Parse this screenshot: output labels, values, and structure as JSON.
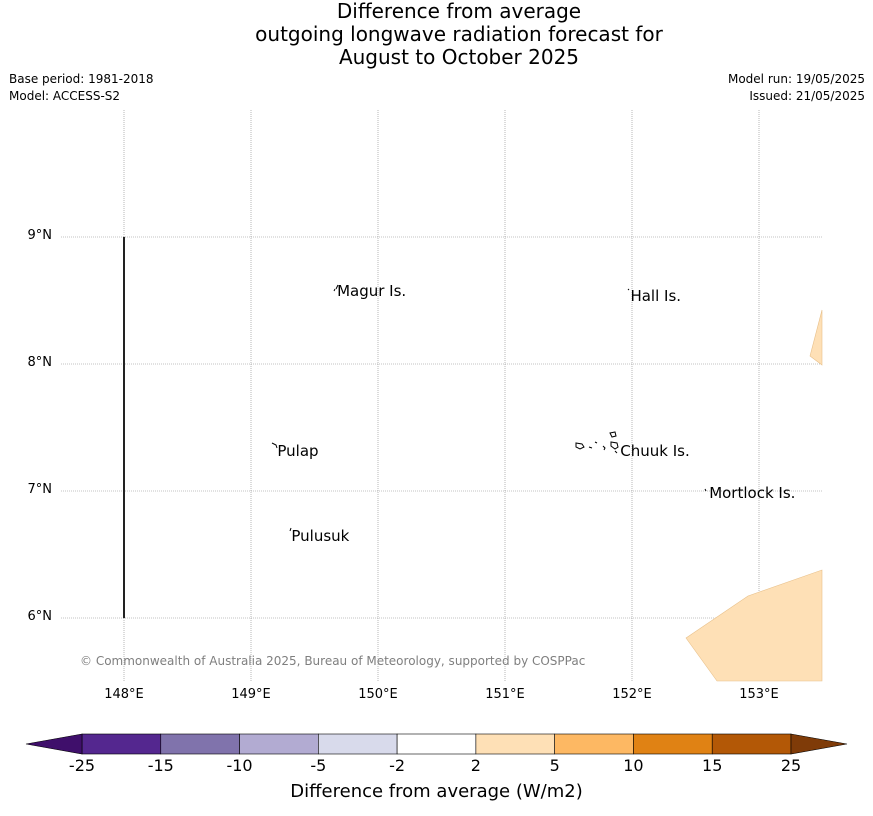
{
  "title": {
    "line1": "Difference from average",
    "line2": "outgoing longwave radiation forecast for",
    "line3": "August to October 2025"
  },
  "meta": {
    "base_period": "Base period: 1981-2018",
    "model": "Model: ACCESS-S2",
    "model_run": "Model run: 19/05/2025",
    "issued": "Issued: 21/05/2025"
  },
  "map": {
    "lon_ticks": [
      {
        "value": 148,
        "label": "148°E"
      },
      {
        "value": 149,
        "label": "149°E"
      },
      {
        "value": 150,
        "label": "150°E"
      },
      {
        "value": 151,
        "label": "151°E"
      },
      {
        "value": 152,
        "label": "152°E"
      },
      {
        "value": 153,
        "label": "153°E"
      }
    ],
    "lat_ticks": [
      {
        "value": 9,
        "label": "9°N"
      },
      {
        "value": 8,
        "label": "8°N"
      },
      {
        "value": 7,
        "label": "7°N"
      },
      {
        "value": 6,
        "label": "6°N"
      }
    ],
    "places": [
      {
        "name": "Magur Is.",
        "lon": 149.67,
        "lat": 8.57
      },
      {
        "name": "Hall Is.",
        "lon": 151.98,
        "lat": 8.53
      },
      {
        "name": "Pulap",
        "lon": 149.2,
        "lat": 7.31
      },
      {
        "name": "Chuuk Is.",
        "lon": 151.9,
        "lat": 7.31
      },
      {
        "name": "Mortlock Is.",
        "lon": 152.6,
        "lat": 6.98
      },
      {
        "name": "Pulusuk",
        "lon": 149.31,
        "lat": 6.64
      }
    ],
    "copyright": "© Commonwealth of Australia 2025, Bureau of Meteorology, supported by COSPPac"
  },
  "colorbar": {
    "label": "Difference from average (W/m2)",
    "ticks": [
      "-25",
      "-15",
      "-10",
      "-5",
      "-2",
      "2",
      "5",
      "10",
      "15",
      "25"
    ],
    "colors": {
      "below": "#3f0f6b",
      "bins": [
        "#54278f",
        "#8073ac",
        "#b2abd2",
        "#d8daeb",
        "#ffffff",
        "#fee0b6",
        "#fdb863",
        "#e08214",
        "#b35806"
      ],
      "above": "#7f3b08"
    }
  }
}
